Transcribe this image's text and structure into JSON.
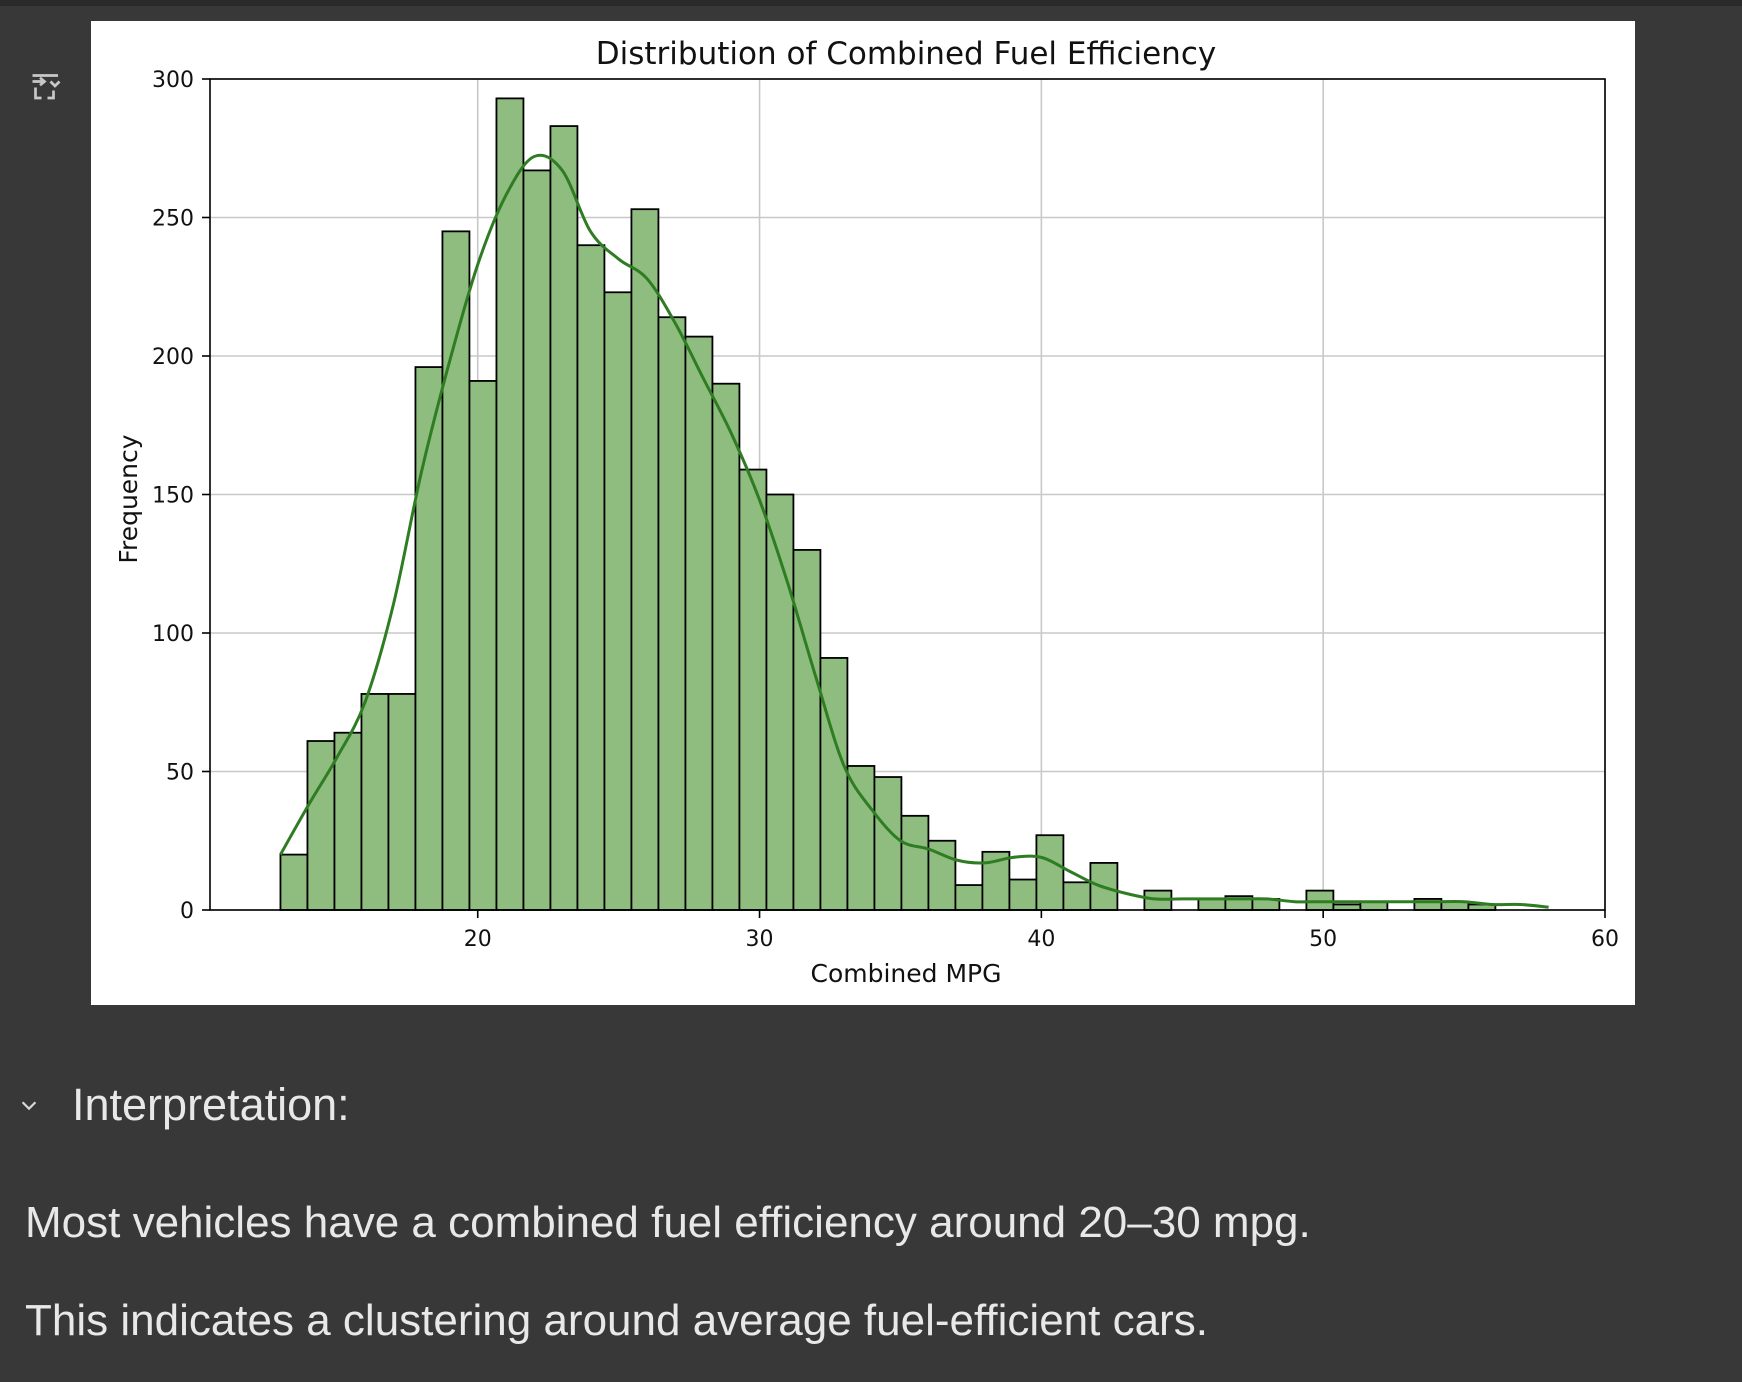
{
  "toolbar": {
    "output_icon": "output-toggle-icon"
  },
  "chart_data": {
    "type": "bar",
    "title": "Distribution of Combined Fuel Efficiency",
    "xlabel": "Combined MPG",
    "ylabel": "Frequency",
    "xlim": [
      10.5,
      60
    ],
    "ylim": [
      0,
      300
    ],
    "xticks": [
      20,
      30,
      40,
      50,
      60
    ],
    "yticks": [
      0,
      50,
      100,
      150,
      200,
      250,
      300
    ],
    "grid": true,
    "bar_color": "#8fbc7f",
    "bar_edge_color": "#000000",
    "kde_color": "#2e7d22",
    "bin_width": 0.958,
    "bin_start": 13.0,
    "values": [
      20,
      61,
      64,
      78,
      78,
      196,
      245,
      191,
      293,
      267,
      283,
      240,
      223,
      253,
      214,
      207,
      190,
      159,
      150,
      130,
      91,
      52,
      48,
      34,
      25,
      9,
      21,
      11,
      27,
      10,
      17,
      0,
      7,
      0,
      4,
      5,
      4,
      0,
      7,
      2,
      3,
      0,
      4,
      3,
      2
    ],
    "kde": {
      "x": [
        13,
        14,
        15,
        16,
        17,
        18,
        19,
        20,
        21,
        22,
        23,
        24,
        25,
        26,
        27,
        28,
        29,
        30,
        31,
        32,
        33,
        34,
        35,
        36,
        37,
        38,
        39,
        40,
        41,
        42,
        43,
        44,
        45,
        46,
        47,
        48,
        49,
        50,
        51,
        52,
        53,
        54,
        55,
        56,
        57,
        58
      ],
      "y": [
        20,
        38,
        55,
        75,
        110,
        158,
        198,
        233,
        258,
        272,
        267,
        245,
        235,
        228,
        212,
        192,
        172,
        148,
        118,
        84,
        52,
        36,
        25,
        22,
        18,
        17,
        19,
        19,
        14,
        9,
        6,
        4,
        4,
        4,
        4,
        4,
        3,
        3,
        3,
        3,
        3,
        3,
        3,
        2,
        2,
        1
      ]
    }
  },
  "section": {
    "title": "Interpretation:"
  },
  "paragraphs": {
    "p1": "Most vehicles have a combined fuel efficiency around 20–30 mpg.",
    "p2": "This indicates a clustering around average fuel-efficient cars."
  }
}
